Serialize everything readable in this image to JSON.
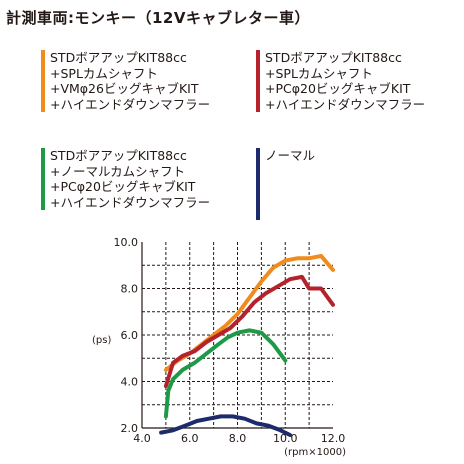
{
  "title": "計測車両:モンキー（12Vキャブレター車）",
  "colors": {
    "orange": "#f08c1e",
    "red": "#b5222b",
    "green": "#1e9a46",
    "navy": "#1d2a6b",
    "axis": "#231815"
  },
  "legend": [
    {
      "color_key": "orange",
      "lines": [
        "STDボアアップKIT88cc",
        "+SPLカムシャフト",
        "+VMφ26ビッグキャブKIT",
        "+ハイエンドダウンマフラー"
      ]
    },
    {
      "color_key": "red",
      "lines": [
        "STDボアアップKIT88cc",
        "+SPLカムシャフト",
        "+PCφ20ビッグキャブKIT",
        "+ハイエンドダウンマフラー"
      ]
    },
    {
      "color_key": "green",
      "lines": [
        "STDボアアップKIT88cc",
        "+ノーマルカムシャフト",
        "+PCφ20ビッグキャブKIT",
        "+ハイエンドダウンマフラー"
      ]
    },
    {
      "color_key": "navy",
      "lines": [
        "ノーマル"
      ]
    }
  ],
  "chart_data": {
    "type": "line",
    "xlabel": "(rpm×1000)",
    "ylabel": "(ps)",
    "xlim": [
      4.0,
      12.0
    ],
    "ylim": [
      2.0,
      10.0
    ],
    "x_ticks": [
      "4.0",
      "6.0",
      "8.0",
      "10.0",
      "12.0"
    ],
    "y_ticks": [
      "2.0",
      "4.0",
      "6.0",
      "8.0",
      "10.0"
    ],
    "grid": true,
    "series": [
      {
        "color_key": "orange",
        "points": [
          [
            5.0,
            4.5
          ],
          [
            5.5,
            4.9
          ],
          [
            6.0,
            5.2
          ],
          [
            6.5,
            5.6
          ],
          [
            7.0,
            6.0
          ],
          [
            7.5,
            6.4
          ],
          [
            8.0,
            6.9
          ],
          [
            8.5,
            7.6
          ],
          [
            9.0,
            8.3
          ],
          [
            9.5,
            8.9
          ],
          [
            10.0,
            9.2
          ],
          [
            10.5,
            9.3
          ],
          [
            11.0,
            9.3
          ],
          [
            11.5,
            9.4
          ],
          [
            12.0,
            8.8
          ]
        ]
      },
      {
        "color_key": "red",
        "points": [
          [
            5.0,
            3.8
          ],
          [
            5.3,
            4.8
          ],
          [
            5.7,
            5.1
          ],
          [
            6.2,
            5.3
          ],
          [
            6.7,
            5.7
          ],
          [
            7.2,
            6.0
          ],
          [
            7.7,
            6.3
          ],
          [
            8.2,
            6.8
          ],
          [
            8.7,
            7.4
          ],
          [
            9.2,
            7.8
          ],
          [
            9.7,
            8.1
          ],
          [
            10.2,
            8.4
          ],
          [
            10.7,
            8.5
          ],
          [
            11.0,
            8.0
          ],
          [
            11.5,
            8.0
          ],
          [
            12.0,
            7.3
          ]
        ]
      },
      {
        "color_key": "green",
        "points": [
          [
            5.0,
            2.5
          ],
          [
            5.1,
            3.6
          ],
          [
            5.3,
            4.1
          ],
          [
            5.7,
            4.5
          ],
          [
            6.2,
            4.8
          ],
          [
            6.7,
            5.2
          ],
          [
            7.2,
            5.6
          ],
          [
            7.6,
            5.9
          ],
          [
            8.0,
            6.1
          ],
          [
            8.5,
            6.2
          ],
          [
            9.0,
            6.1
          ],
          [
            9.5,
            5.6
          ],
          [
            10.0,
            4.9
          ]
        ]
      },
      {
        "color_key": "navy",
        "points": [
          [
            4.8,
            1.8
          ],
          [
            5.3,
            1.9
          ],
          [
            5.8,
            2.1
          ],
          [
            6.3,
            2.3
          ],
          [
            6.8,
            2.4
          ],
          [
            7.3,
            2.5
          ],
          [
            7.8,
            2.5
          ],
          [
            8.3,
            2.4
          ],
          [
            8.8,
            2.2
          ],
          [
            9.3,
            2.1
          ],
          [
            9.8,
            1.9
          ],
          [
            10.2,
            1.7
          ]
        ]
      }
    ]
  }
}
